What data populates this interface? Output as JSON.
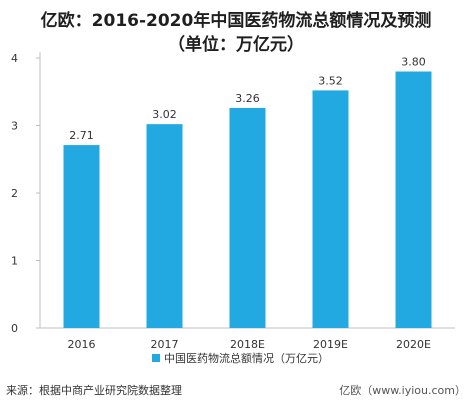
{
  "title_line1": "亿欧：2016-2020年中国医药物流总额情况及预测",
  "title_line2": "（单位：万亿元）",
  "source_text": "来源：根据中商产业研究院数据整理",
  "watermark_text": "亿欧（www.iyiou.com）",
  "colors": {
    "bar": "#23a9e1",
    "axis": "#bfbfbf",
    "grid": "#d9d9d9",
    "text": "#333333"
  },
  "chart_data": {
    "type": "bar",
    "title": "亿欧：2016-2020年中国医药物流总额情况及预测",
    "subtitle": "（单位：万亿元）",
    "categories": [
      "2016",
      "2017",
      "2018E",
      "2019E",
      "2020E"
    ],
    "series": [
      {
        "name": "中国医药物流总额情况（万亿元）",
        "values": [
          2.71,
          3.02,
          3.26,
          3.52,
          3.8
        ]
      }
    ],
    "data_labels": [
      "2.71",
      "3.02",
      "3.26",
      "3.52",
      "3.80"
    ],
    "y_ticks": [
      "0",
      "1",
      "2",
      "3",
      "4"
    ],
    "ylim": [
      0,
      4
    ],
    "xlabel": "",
    "ylabel": "",
    "grid": false,
    "legend_position": "bottom"
  }
}
